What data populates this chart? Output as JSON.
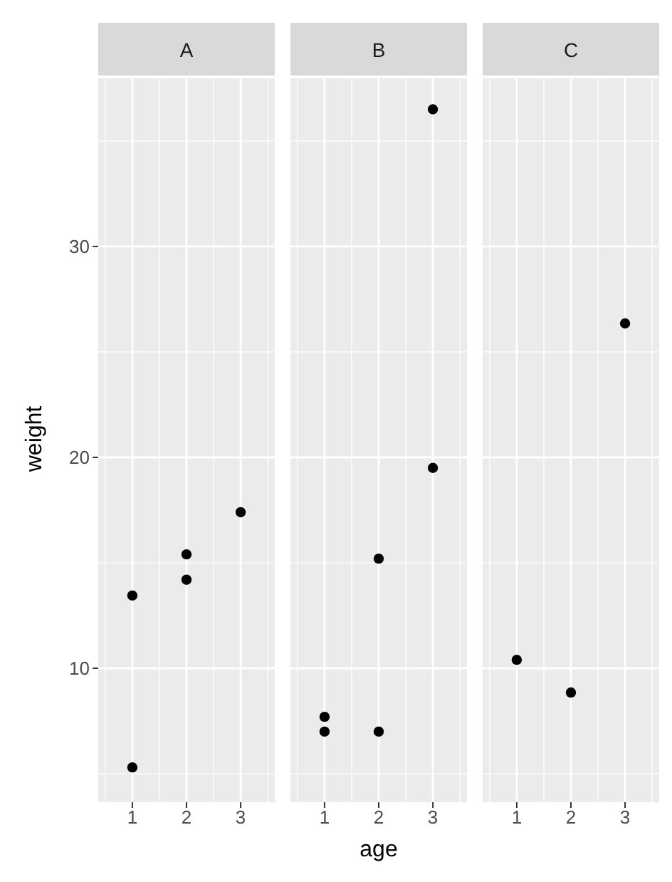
{
  "chart_data": [
    {
      "type": "scatter",
      "title": "A",
      "ylabel": "weight",
      "x": [
        1,
        1,
        2,
        2,
        3
      ],
      "values": [
        13.45,
        5.3,
        15.4,
        14.2,
        17.4
      ],
      "color": "#000000",
      "xlim": [
        0.37,
        3.63
      ],
      "xticks": [
        1,
        2,
        3
      ],
      "ylim": [
        3.65,
        37.97
      ],
      "yticks": [
        10,
        20,
        30
      ],
      "grid": true,
      "marker": "circle"
    },
    {
      "type": "scatter",
      "title": "B",
      "xlabel": "age",
      "x": [
        1,
        1,
        2,
        2,
        3,
        3
      ],
      "values": [
        7.7,
        7.0,
        7.0,
        15.2,
        19.5,
        36.5
      ],
      "color": "#000000",
      "xlim": [
        0.37,
        3.63
      ],
      "xticks": [
        1,
        2,
        3
      ],
      "ylim": [
        3.65,
        37.97
      ],
      "yticks": [
        10,
        20,
        30
      ],
      "grid": true,
      "marker": "circle",
      "tick_labels": "x"
    },
    {
      "type": "scatter",
      "title": "C",
      "x": [
        1,
        2,
        3
      ],
      "values": [
        10.4,
        8.85,
        26.35
      ],
      "color": "#000000",
      "xlim": [
        0.37,
        3.63
      ],
      "xticks": [
        1,
        2,
        3
      ],
      "ylim": [
        3.65,
        37.97
      ],
      "yticks": [
        10,
        20,
        30
      ],
      "grid": true,
      "marker": "circle",
      "tick_labels": "x"
    }
  ]
}
